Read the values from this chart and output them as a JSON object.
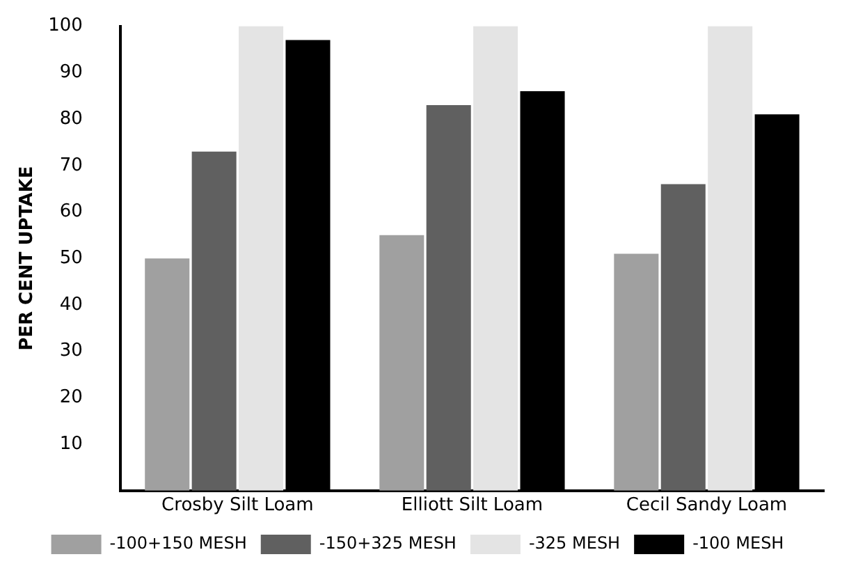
{
  "chart_data": {
    "type": "bar",
    "ylabel": "PER CENT UPTAKE",
    "categories": [
      "Crosby Silt Loam",
      "Elliott Silt Loam",
      "Cecil Sandy Loam"
    ],
    "series": [
      {
        "name": "-100+150 MESH",
        "color": "#a0a0a0",
        "values": [
          50,
          55,
          51
        ]
      },
      {
        "name": "-150+325 MESH",
        "color": "#606060",
        "values": [
          73,
          83,
          66
        ]
      },
      {
        "name": "-325 MESH",
        "color": "#e4e4e4",
        "values": [
          100,
          100,
          100
        ]
      },
      {
        "name": "-100 MESH",
        "color": "#000000",
        "values": [
          97,
          86,
          81
        ]
      }
    ],
    "ylim": [
      0,
      100
    ],
    "yticks": [
      10,
      20,
      30,
      40,
      50,
      60,
      70,
      80,
      90,
      100
    ],
    "grid": false,
    "legend": "bottom"
  }
}
